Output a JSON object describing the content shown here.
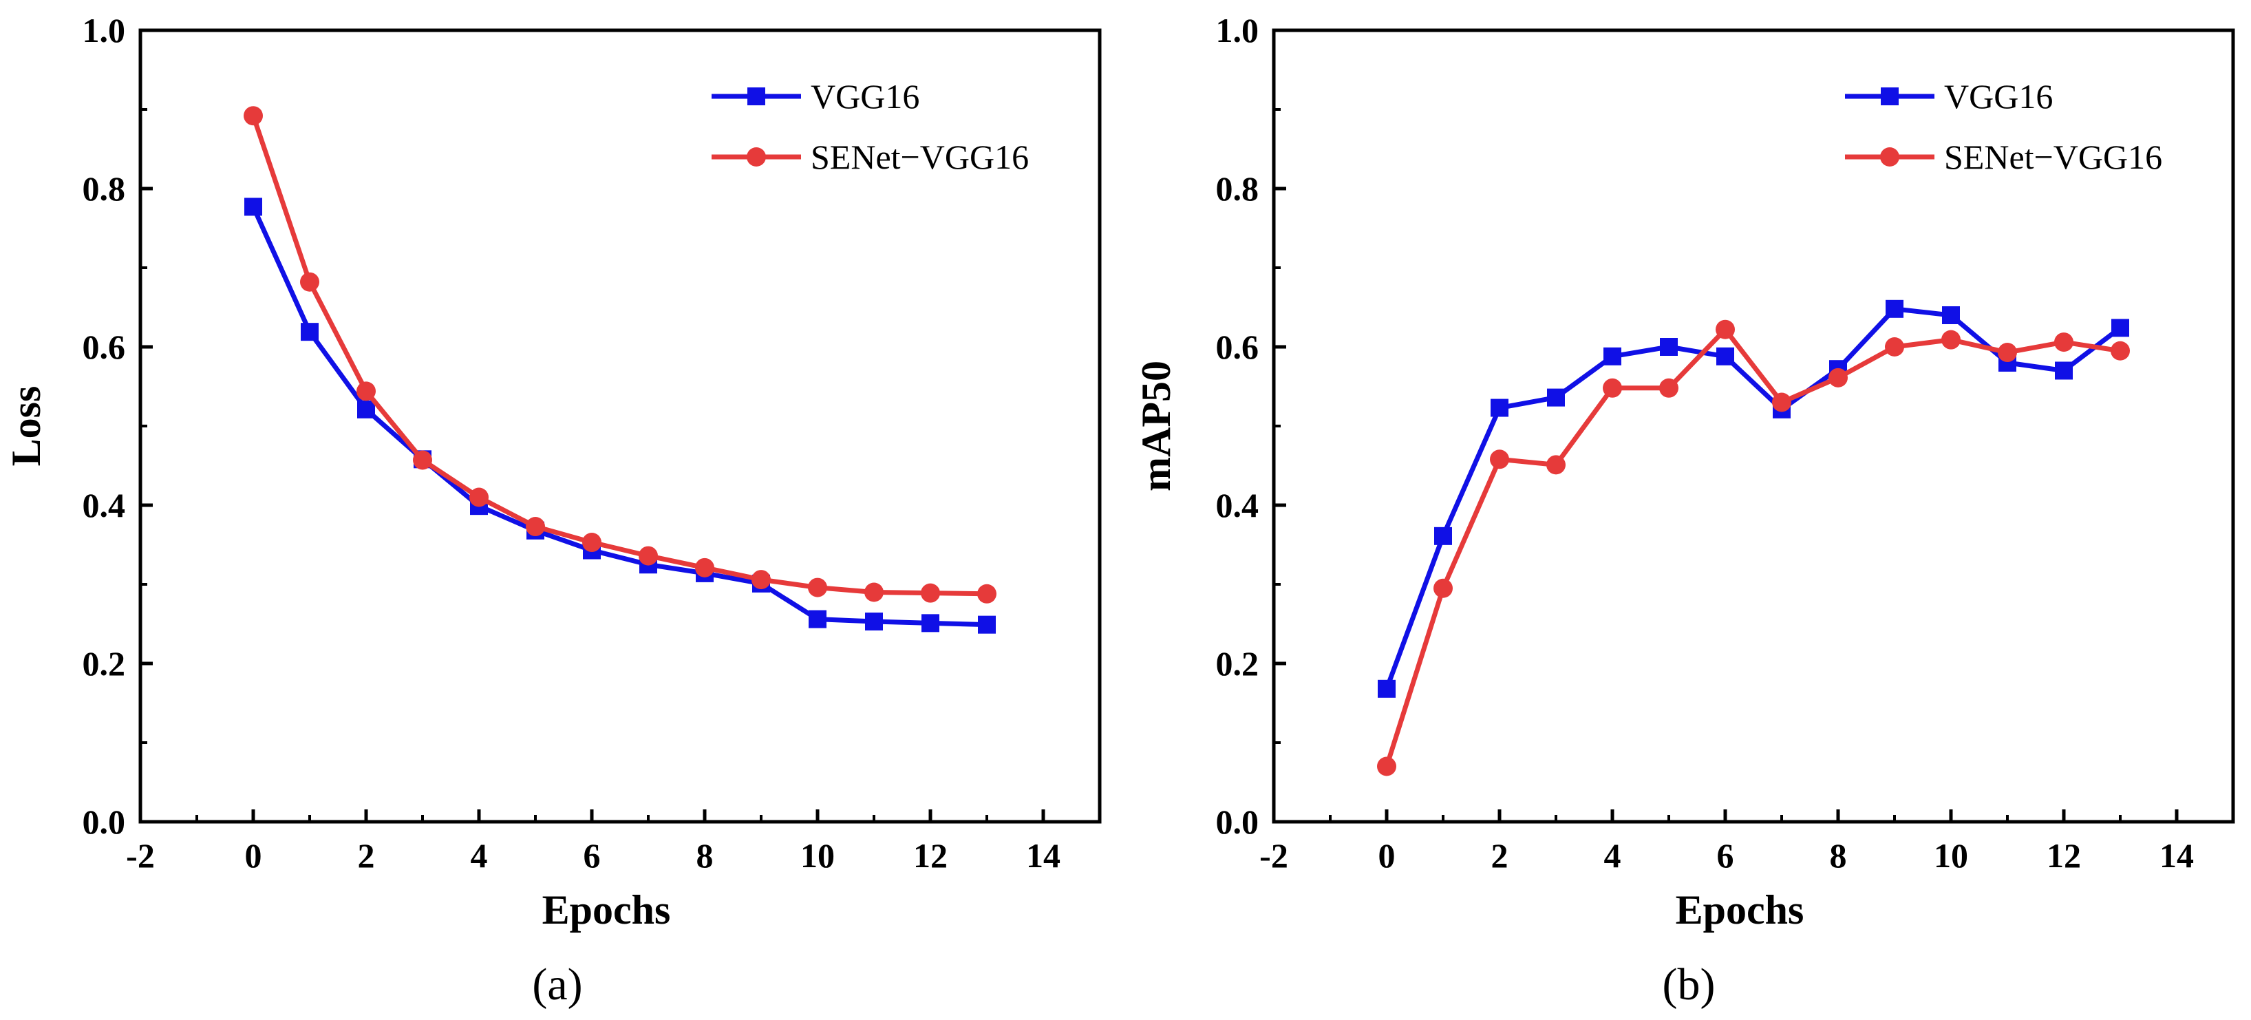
{
  "chart_data": [
    {
      "type": "line",
      "panel": "a",
      "caption": "(a)",
      "title": "",
      "xlabel": "Epochs",
      "ylabel": "Loss",
      "xlim": [
        -2,
        15
      ],
      "ylim": [
        0,
        1.0
      ],
      "xticks": [
        -2,
        0,
        2,
        4,
        6,
        8,
        10,
        12,
        14
      ],
      "xtick_labels": [
        "-2",
        "0",
        "2",
        "4",
        "6",
        "8",
        "10",
        "12",
        "14"
      ],
      "yticks": [
        0.0,
        0.2,
        0.4,
        0.6,
        0.8,
        1.0
      ],
      "ytick_labels": [
        "0.0",
        "0.2",
        "0.4",
        "0.6",
        "0.8",
        "1.0"
      ],
      "grid": false,
      "legend_position": "top-right",
      "x": [
        0,
        1,
        2,
        3,
        4,
        5,
        6,
        7,
        8,
        9,
        10,
        11,
        12,
        13
      ],
      "series": [
        {
          "name": "VGG16",
          "color": "#1010e6",
          "marker": "square",
          "values": [
            0.777,
            0.619,
            0.521,
            0.458,
            0.399,
            0.368,
            0.343,
            0.325,
            0.314,
            0.301,
            0.256,
            0.253,
            0.251,
            0.249
          ]
        },
        {
          "name": "SENet−VGG16",
          "color": "#e63a3a",
          "marker": "circle",
          "values": [
            0.892,
            0.682,
            0.544,
            0.457,
            0.41,
            0.373,
            0.353,
            0.336,
            0.321,
            0.306,
            0.296,
            0.29,
            0.289,
            0.288
          ]
        }
      ]
    },
    {
      "type": "line",
      "panel": "b",
      "caption": "(b)",
      "title": "",
      "xlabel": "Epochs",
      "ylabel": "mAP50",
      "xlim": [
        -2,
        15
      ],
      "ylim": [
        0,
        1.0
      ],
      "xticks": [
        -2,
        0,
        2,
        4,
        6,
        8,
        10,
        12,
        14
      ],
      "xtick_labels": [
        "-2",
        "0",
        "2",
        "4",
        "6",
        "8",
        "10",
        "12",
        "14"
      ],
      "yticks": [
        0.0,
        0.2,
        0.4,
        0.6,
        0.8,
        1.0
      ],
      "ytick_labels": [
        "0.0",
        "0.2",
        "0.4",
        "0.6",
        "0.8",
        "1.0"
      ],
      "grid": false,
      "legend_position": "top-right",
      "x": [
        0,
        1,
        2,
        3,
        4,
        5,
        6,
        7,
        8,
        9,
        10,
        11,
        12,
        13
      ],
      "series": [
        {
          "name": "VGG16",
          "color": "#1010e6",
          "marker": "square",
          "values": [
            0.168,
            0.361,
            0.523,
            0.536,
            0.588,
            0.6,
            0.588,
            0.521,
            0.572,
            0.648,
            0.64,
            0.58,
            0.57,
            0.624
          ]
        },
        {
          "name": "SENet−VGG16",
          "color": "#e63a3a",
          "marker": "circle",
          "values": [
            0.07,
            0.295,
            0.458,
            0.451,
            0.548,
            0.548,
            0.622,
            0.53,
            0.561,
            0.6,
            0.609,
            0.593,
            0.606,
            0.595
          ]
        }
      ]
    }
  ]
}
